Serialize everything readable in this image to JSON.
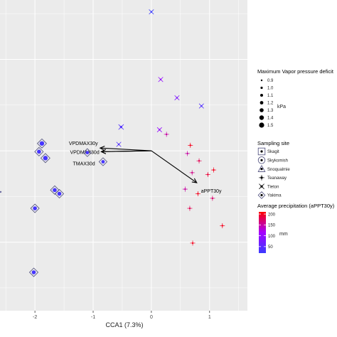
{
  "chart_data": {
    "type": "scatter",
    "xlabel": "CCA1 (7.3%)",
    "ylabel": "",
    "xlim": [
      -2.6,
      1.65
    ],
    "ylim": [
      -1.75,
      1.65
    ],
    "x_ticks": [
      "-2",
      "-1",
      "0",
      "1"
    ],
    "grid": true,
    "points": [
      {
        "x": 0.0,
        "y": 1.52,
        "site": "Tieton",
        "appt": 20,
        "vpd": 0.9
      },
      {
        "x": 0.16,
        "y": 0.78,
        "site": "Tieton",
        "appt": 100,
        "vpd": 0.9
      },
      {
        "x": 0.44,
        "y": 0.58,
        "site": "Tieton",
        "appt": 80,
        "vpd": 0.9
      },
      {
        "x": 0.86,
        "y": 0.49,
        "site": "Tieton",
        "appt": 40,
        "vpd": 0.9
      },
      {
        "x": -0.52,
        "y": 0.26,
        "site": "Tieton",
        "appt": 40,
        "vpd": 1.0
      },
      {
        "x": 0.14,
        "y": 0.23,
        "site": "Tieton",
        "appt": 100,
        "vpd": 0.9
      },
      {
        "x": 0.26,
        "y": 0.18,
        "site": "Teanaway",
        "appt": 150,
        "vpd": 0.9
      },
      {
        "x": -0.56,
        "y": 0.07,
        "site": "Tieton",
        "appt": 40,
        "vpd": 0.9
      },
      {
        "x": -1.88,
        "y": 0.08,
        "site": "Yakima",
        "appt": 30,
        "vpd": 1.4
      },
      {
        "x": -1.93,
        "y": -0.01,
        "site": "Yakima",
        "appt": 30,
        "vpd": 1.3
      },
      {
        "x": -1.82,
        "y": -0.08,
        "site": "Yakima",
        "appt": 30,
        "vpd": 1.4
      },
      {
        "x": -1.1,
        "y": -0.02,
        "site": "Yakima",
        "appt": 30,
        "vpd": 1.2
      },
      {
        "x": -0.83,
        "y": -0.12,
        "site": "Yakima",
        "appt": 30,
        "vpd": 1.2
      },
      {
        "x": -1.66,
        "y": -0.43,
        "site": "Yakima",
        "appt": 30,
        "vpd": 1.3
      },
      {
        "x": -1.58,
        "y": -0.47,
        "site": "Yakima",
        "appt": 30,
        "vpd": 1.3
      },
      {
        "x": -2.0,
        "y": -0.63,
        "site": "Yakima",
        "appt": 30,
        "vpd": 1.3
      },
      {
        "x": -2.02,
        "y": -1.33,
        "site": "Yakima",
        "appt": 30,
        "vpd": 1.3
      },
      {
        "x": 0.67,
        "y": 0.06,
        "site": "Teanaway",
        "appt": 200,
        "vpd": 0.9
      },
      {
        "x": 0.62,
        "y": -0.03,
        "site": "Teanaway",
        "appt": 150,
        "vpd": 0.9
      },
      {
        "x": 0.82,
        "y": -0.11,
        "site": "Teanaway",
        "appt": 180,
        "vpd": 0.9
      },
      {
        "x": 1.07,
        "y": -0.21,
        "site": "Teanaway",
        "appt": 200,
        "vpd": 0.9
      },
      {
        "x": 0.7,
        "y": -0.24,
        "site": "Teanaway",
        "appt": 160,
        "vpd": 0.9
      },
      {
        "x": 0.97,
        "y": -0.26,
        "site": "Teanaway",
        "appt": 190,
        "vpd": 0.9
      },
      {
        "x": 0.58,
        "y": -0.42,
        "site": "Teanaway",
        "appt": 150,
        "vpd": 0.9
      },
      {
        "x": 0.8,
        "y": -0.47,
        "site": "Teanaway",
        "appt": 200,
        "vpd": 0.9
      },
      {
        "x": 1.05,
        "y": -0.52,
        "site": "Teanaway",
        "appt": 170,
        "vpd": 0.9
      },
      {
        "x": 0.66,
        "y": -0.63,
        "site": "Teanaway",
        "appt": 180,
        "vpd": 0.9
      },
      {
        "x": 1.22,
        "y": -0.82,
        "site": "Teanaway",
        "appt": 200,
        "vpd": 0.9
      },
      {
        "x": 0.71,
        "y": -1.01,
        "site": "Teanaway",
        "appt": 200,
        "vpd": 0.9
      }
    ],
    "arrows": [
      {
        "label": "VPDMAX30y",
        "x": -0.88,
        "y": 0.03
      },
      {
        "label": "VPDMAX30d",
        "x": -0.86,
        "y": -0.01
      },
      {
        "label": "TMAX30d",
        "x": -0.86,
        "y": -0.01
      },
      {
        "label": "aPPT30y",
        "x": 0.78,
        "y": -0.35
      }
    ],
    "arrow_origin": {
      "x": 0.0,
      "y": 0.0
    },
    "legend": {
      "placement": "right",
      "vpd": {
        "title": "Maximum Vapor pressure deficit",
        "unit": "kPa",
        "levels": [
          "0.9",
          "1.0",
          "1.1",
          "1.2",
          "1.3",
          "1.4",
          "1.5"
        ]
      },
      "site": {
        "title": "Sampling site",
        "items": [
          "Skagit",
          "Skykomish",
          "Snoqualmie",
          "Teanaway",
          "Tieton",
          "Yakima"
        ]
      },
      "precip": {
        "title": "Average precipitation (aPPT30y)",
        "unit": "mm",
        "ticks": [
          "200",
          "150",
          "100",
          "50"
        ],
        "min": 20,
        "max": 210
      }
    }
  },
  "colors": {
    "panel": "#ebebeb",
    "grid": "#ffffff",
    "low": "#3b3bff",
    "mid": "#a500ff",
    "high": "#ff0000"
  }
}
